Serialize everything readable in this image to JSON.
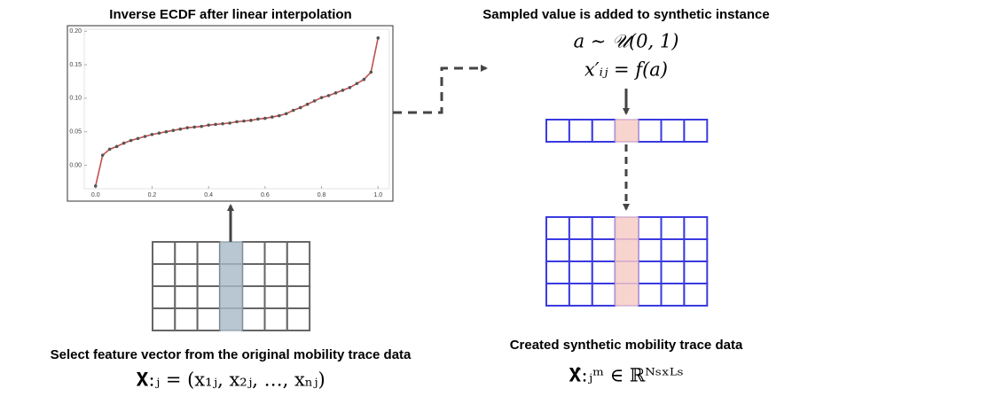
{
  "left_panel": {
    "title": "Inverse ECDF after linear interpolation",
    "chart": {
      "type": "line",
      "x": [
        0,
        0.025,
        0.05,
        0.075,
        0.1,
        0.125,
        0.15,
        0.175,
        0.2,
        0.225,
        0.25,
        0.275,
        0.3,
        0.325,
        0.35,
        0.375,
        0.4,
        0.425,
        0.45,
        0.475,
        0.5,
        0.525,
        0.55,
        0.575,
        0.6,
        0.625,
        0.65,
        0.675,
        0.7,
        0.725,
        0.75,
        0.775,
        0.8,
        0.825,
        0.85,
        0.875,
        0.9,
        0.925,
        0.95,
        0.975,
        1.0
      ],
      "values": [
        -0.031,
        0.015,
        0.024,
        0.028,
        0.033,
        0.037,
        0.04,
        0.043,
        0.046,
        0.048,
        0.05,
        0.052,
        0.054,
        0.056,
        0.057,
        0.058,
        0.06,
        0.061,
        0.062,
        0.063,
        0.065,
        0.066,
        0.067,
        0.069,
        0.07,
        0.072,
        0.074,
        0.077,
        0.082,
        0.086,
        0.091,
        0.096,
        0.101,
        0.104,
        0.108,
        0.112,
        0.116,
        0.122,
        0.128,
        0.139,
        0.19
      ],
      "color": "#c0504d",
      "marker_color": "#555555",
      "xlim": [
        -0.04,
        1.04
      ],
      "ylim": [
        -0.035,
        0.203
      ],
      "xticks": [
        {
          "value": 0,
          "label": "0.0"
        },
        0.2,
        0.4,
        0.6,
        0.8,
        {
          "value": 1,
          "label": "1.0"
        }
      ],
      "yticks": [
        {
          "value": 0,
          "label": "0.00"
        },
        0.05,
        {
          "value": 0.1,
          "label": "0.10"
        },
        0.15,
        {
          "value": 0.2,
          "label": "0.20"
        }
      ]
    },
    "caption": "Select feature vector from the original mobility trace data",
    "formula": "𝐗:ⱼ = (x₁ⱼ, x₂ⱼ, …, xₙⱼ)"
  },
  "right_panel": {
    "title": "Sampled value is added to synthetic instance",
    "formula_sample": "a ∼ 𝒰(0, 1)",
    "formula_assign": "x′ᵢⱼ = f(a)",
    "caption": "Created synthetic mobility trace data",
    "formula": "𝐗̂:ⱼᵐ ∈ ℝᴺˢˣᴸˢ"
  }
}
